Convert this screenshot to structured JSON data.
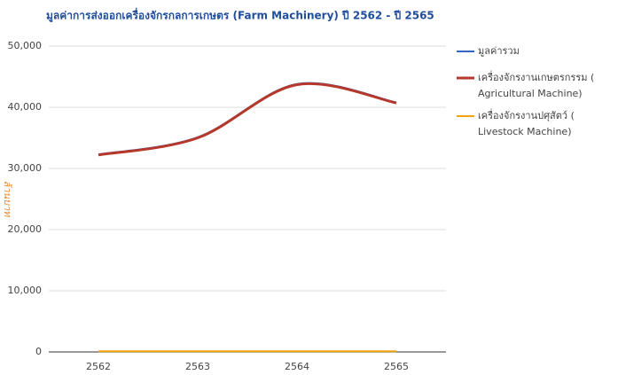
{
  "chart_data": {
    "type": "line",
    "title": "มูลค่าการส่งออกเครื่องจักรกลการเกษตร (Farm Machinery) ปี 2562 - ปี 2565",
    "y_label": "ล้านบาท",
    "categories": [
      "2562",
      "2563",
      "2564",
      "2565"
    ],
    "series": [
      {
        "name": "มูลค่ารวม",
        "color": "#3366cc",
        "values": [
          32300,
          35100,
          43800,
          40800
        ]
      },
      {
        "name": "เครื่องจักรงานเกษตรกรรม (Agricultural Machine)",
        "color": "#b5382b",
        "values": [
          32200,
          35000,
          43700,
          40700
        ]
      },
      {
        "name": "เครื่องจักรงานปศุสัตว์ (Livestock Machine)",
        "color": "#f0a30a",
        "values": [
          100,
          100,
          100,
          100
        ]
      }
    ],
    "ylim": [
      0,
      50000
    ],
    "yticks": [
      0,
      {
        "value": 10000,
        "label": "10,000"
      },
      {
        "value": 20000,
        "label": "20,000"
      },
      {
        "value": 30000,
        "label": "30,000"
      },
      {
        "value": 40000,
        "label": "40,000"
      },
      {
        "value": 50000,
        "label": "50,000"
      }
    ],
    "grid": true,
    "legend": "right"
  }
}
